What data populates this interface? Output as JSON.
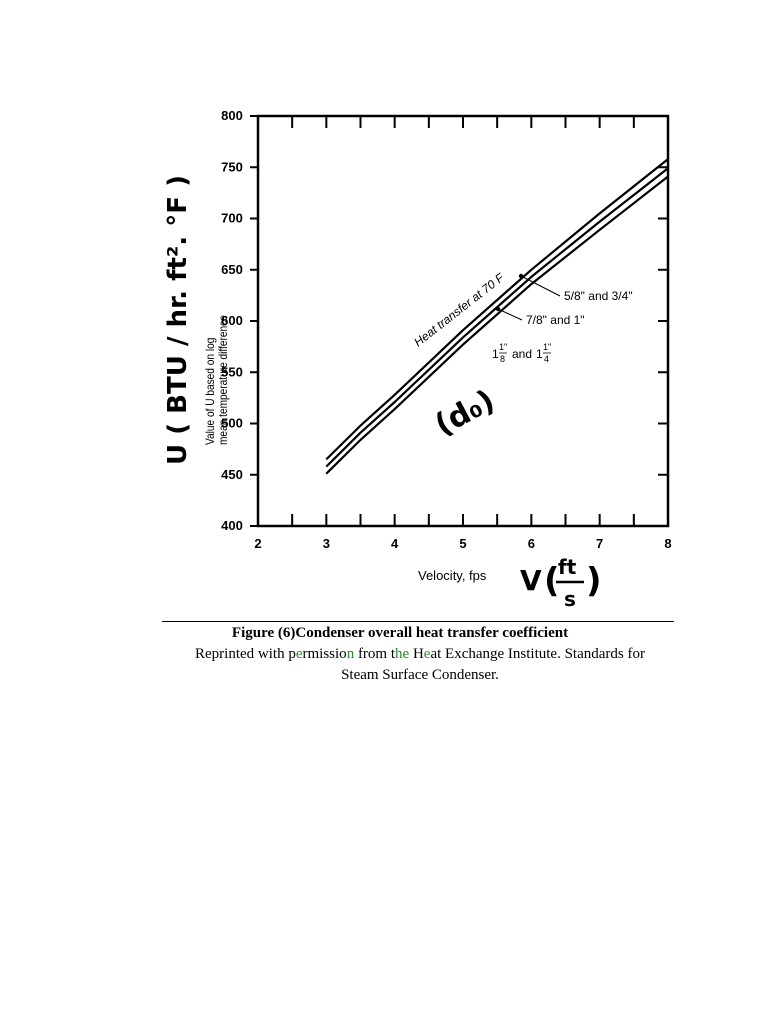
{
  "chart_data": {
    "type": "line",
    "title": "",
    "xlabel": "Velocity, fps",
    "ylabel": "Value of U based on log mean temperature difference",
    "xlim": [
      2,
      8
    ],
    "ylim": [
      400,
      800
    ],
    "x_ticks": [
      "2",
      "3",
      "4",
      "5",
      "6",
      "7",
      "8"
    ],
    "y_ticks": [
      "400",
      "450",
      "500",
      "550",
      "600",
      "650",
      "700",
      "750",
      "800"
    ],
    "grid": false,
    "series": [
      {
        "name": "5/8\" and 3/4\"",
        "x": [
          3,
          3.5,
          4,
          5,
          6,
          7,
          8
        ],
        "y": [
          465,
          498,
          528,
          591,
          650,
          705,
          758
        ]
      },
      {
        "name": "7/8\" and 1\"",
        "x": [
          3,
          3.5,
          4,
          5,
          6,
          7,
          8
        ],
        "y": [
          458,
          491,
          521,
          584,
          643,
          697,
          749
        ]
      },
      {
        "name": "1 1/8\" and 1 1/4\"",
        "x": [
          3,
          3.5,
          4,
          5,
          6,
          7,
          8
        ],
        "y": [
          451,
          484,
          514,
          577,
          636,
          689,
          741
        ]
      }
    ],
    "annotations": {
      "curve_title": "Heat transfer at 70 F",
      "label_a": "5/8\" and 3/4\"",
      "label_b": "7/8\" and 1\"",
      "label_c_whole": "1",
      "label_c_frac1_num": "1\"",
      "label_c_frac1_den": "8",
      "label_c_and": "and",
      "label_c_frac2_num": "1\"",
      "label_c_frac2_den": "4"
    },
    "handwritten": {
      "y_axis": "U ( BTU / hr. ft². °F )",
      "x_axis_v": "V",
      "x_axis_num": "ft",
      "x_axis_den": "s",
      "diameter": "(d₀)"
    }
  },
  "caption": {
    "figure": "Figure (6)Condenser overall heat transfer coefficient",
    "line2_a": "Reprinted with p",
    "line2_b": "e",
    "line2_c": "rmissio",
    "line2_d": "n",
    "line2_e": " from t",
    "line2_f": "he",
    "line2_g": " H",
    "line2_h": "e",
    "line2_i": "at Exchange Institute. Standards for",
    "line3": "Steam Surface Condenser."
  }
}
